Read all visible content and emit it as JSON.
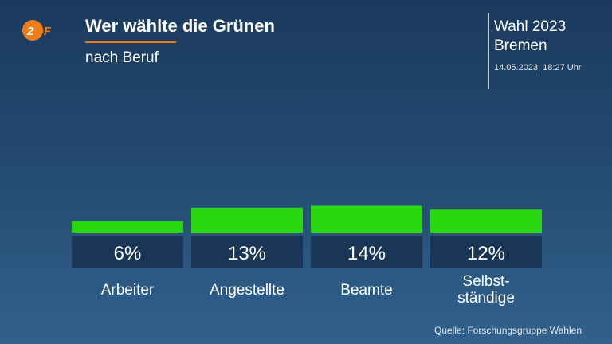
{
  "header": {
    "logo_text": "ZDF",
    "title": "Wer wählte die Grünen",
    "subtitle": "nach Beruf"
  },
  "election": {
    "name": "Wahl 2023",
    "region": "Bremen",
    "timestamp": "14.05.2023, 18:27 Uhr"
  },
  "colors": {
    "bar": "#29d80f",
    "value_box": "#1a3657",
    "accent": "#f07d18",
    "logo_orange": "#f07d18"
  },
  "chart_data": {
    "type": "bar",
    "categories": [
      "Arbeiter",
      "Angestellte",
      "Beamte",
      "Selbst- ständige"
    ],
    "values": [
      6,
      13,
      14,
      12
    ],
    "value_labels": [
      "6%",
      "13%",
      "14%",
      "12%"
    ],
    "category_lines": [
      [
        "Arbeiter"
      ],
      [
        "Angestellte"
      ],
      [
        "Beamte"
      ],
      [
        "Selbst-",
        "ständige"
      ]
    ],
    "unit": "%",
    "ylim": [
      0,
      100
    ],
    "grid": false,
    "legend": "none"
  },
  "footer": {
    "source": "Quelle: Forschungsgruppe Wahlen"
  }
}
